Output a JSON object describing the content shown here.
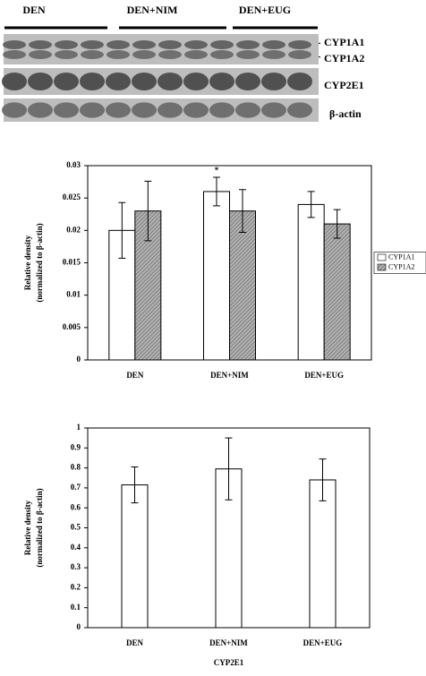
{
  "blot": {
    "groups": [
      "DEN",
      "DEN+NIM",
      "DEN+EUG"
    ],
    "bands": [
      "CYP1A1",
      "CYP1A2",
      "CYP2E1",
      "β-actin"
    ]
  },
  "chart_data": [
    {
      "type": "bar",
      "categories": [
        "DEN",
        "DEN+NIM",
        "DEN+EUG"
      ],
      "ylabel": [
        "Relative density",
        "(normalized to β-actin)"
      ],
      "series": [
        {
          "name": "CYP1A1",
          "color": "#ffffff",
          "values": [
            0.02,
            0.026,
            0.024
          ],
          "errors": [
            0.0043,
            0.0022,
            0.002
          ]
        },
        {
          "name": "CYP1A2",
          "color": "#b0b0b0",
          "pattern": "hatch",
          "values": [
            0.023,
            0.023,
            0.021
          ],
          "errors": [
            0.0046,
            0.0033,
            0.0022
          ]
        }
      ],
      "annotation": "*",
      "ylim": [
        0,
        0.03
      ],
      "yticks": [
        0,
        0.005,
        0.01,
        0.015,
        0.02,
        0.025,
        0.03
      ],
      "legend": "right"
    },
    {
      "type": "bar",
      "categories": [
        "DEN",
        "DEN+NIM",
        "DEN+EUG"
      ],
      "ylabel": [
        "Relative density",
        "(normalized to β-actin)"
      ],
      "xlabel": "CYP2E1",
      "series": [
        {
          "color": "#ffffff",
          "values": [
            0.715,
            0.795,
            0.74
          ],
          "errors": [
            0.09,
            0.155,
            0.105
          ]
        }
      ],
      "ylim": [
        0,
        1
      ],
      "yticks": [
        0,
        0.1,
        0.2,
        0.3,
        0.4,
        0.5,
        0.6,
        0.7,
        0.8,
        0.9,
        1
      ]
    }
  ]
}
